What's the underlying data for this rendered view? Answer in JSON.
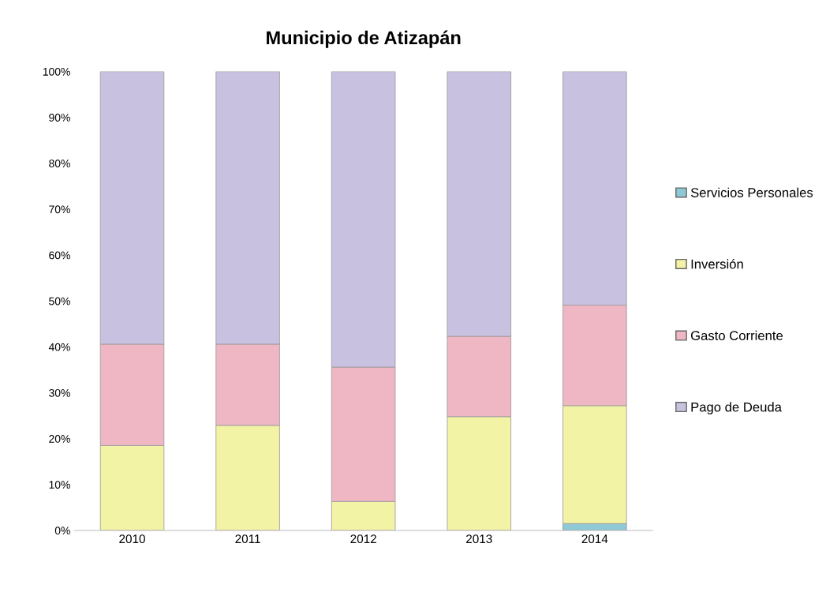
{
  "chart_data": {
    "type": "bar",
    "title": "Municipio de Atizapán",
    "stacked": true,
    "categories": [
      "2010",
      "2011",
      "2012",
      "2013",
      "2014"
    ],
    "series": [
      {
        "name": "Servicios Personales",
        "color": "#8ec9d6",
        "values": [
          null,
          null,
          null,
          null,
          1.5
        ]
      },
      {
        "name": "Inversión",
        "color": "#f3f3a6",
        "values": [
          18.5,
          22.9,
          6.3,
          24.8,
          25.7
        ]
      },
      {
        "name": "Gasto Corriente",
        "color": "#efb6c4",
        "values": [
          22.1,
          17.7,
          29.3,
          17.5,
          21.9
        ]
      },
      {
        "name": "Pago de Deuda",
        "color": "#c9c1e0",
        "values": [
          59.4,
          59.4,
          64.4,
          57.7,
          50.9
        ]
      }
    ],
    "ylim": [
      0,
      100
    ],
    "yticks": [
      {
        "value": 0,
        "label": "0%"
      },
      {
        "value": 10,
        "label": "10%"
      },
      {
        "value": 20,
        "label": "20%"
      },
      {
        "value": 30,
        "label": "30%"
      },
      {
        "value": 40,
        "label": "40%"
      },
      {
        "value": 50,
        "label": "50%"
      },
      {
        "value": 60,
        "label": "60%"
      },
      {
        "value": 70,
        "label": "70%"
      },
      {
        "value": 80,
        "label": "80%"
      },
      {
        "value": 90,
        "label": "90%"
      },
      {
        "value": 100,
        "label": "100%"
      }
    ],
    "grid": false,
    "legend": "right"
  }
}
